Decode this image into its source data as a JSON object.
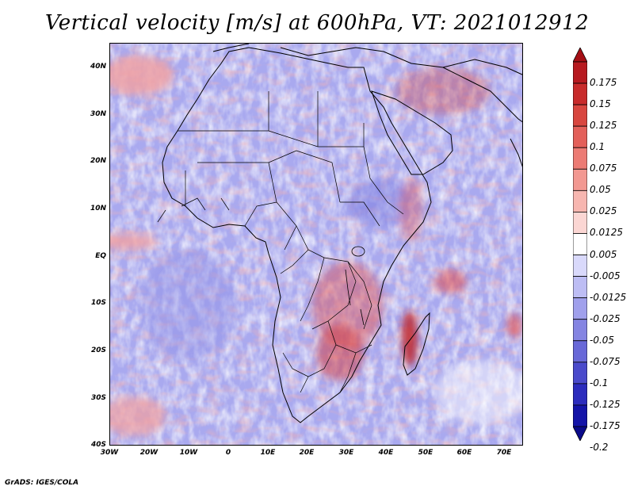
{
  "figure": {
    "title": "Vertical velocity [m/s] at 600hPa, VT: 2021012912",
    "credit": "GrADS: IGES/COLA"
  },
  "axes": {
    "x_ticks": [
      "30W",
      "20W",
      "10W",
      "0",
      "10E",
      "20E",
      "30E",
      "40E",
      "50E",
      "60E",
      "70E"
    ],
    "y_ticks": [
      "40N",
      "30N",
      "20N",
      "10N",
      "EQ",
      "10S",
      "20S",
      "30S",
      "40S"
    ]
  },
  "colorbar": {
    "labels": [
      "0.175",
      "0.15",
      "0.125",
      "0.1",
      "0.075",
      "0.05",
      "0.025",
      "0.0125",
      "0.005",
      "-0.005",
      "-0.0125",
      "-0.025",
      "-0.05",
      "-0.075",
      "-0.1",
      "-0.125",
      "-0.175",
      "-0.2"
    ],
    "colors": [
      "#a50f15",
      "#b71a20",
      "#c82b2b",
      "#d8463f",
      "#e3605a",
      "#ec7b74",
      "#f29891",
      "#f7b6b0",
      "#fbd6d3",
      "#ffffff",
      "#d9d9fb",
      "#bdbdf4",
      "#a0a0ec",
      "#8484e2",
      "#6868d8",
      "#4a4acb",
      "#2c2cbd",
      "#1414a8",
      "#0a0a8a"
    ]
  },
  "map": {
    "region": "Africa",
    "lon_range": [
      -30,
      75
    ],
    "lat_range": [
      -40,
      45
    ],
    "background_color": "#a9a9ef"
  }
}
